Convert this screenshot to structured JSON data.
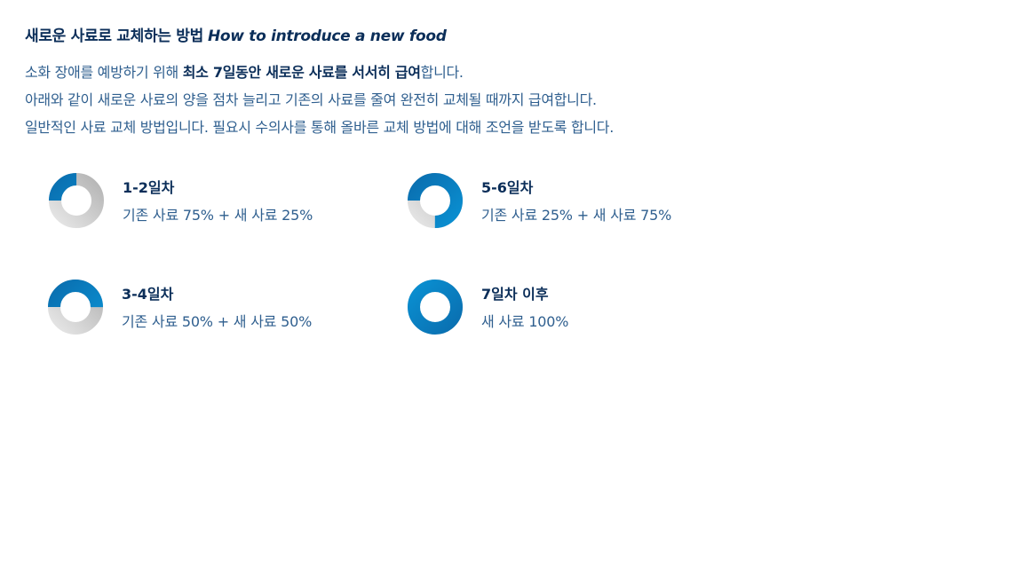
{
  "header": {
    "title_ko": "새로운 사료로 교체하는 방법",
    "title_en": "How to introduce a new food"
  },
  "intro": {
    "line1_a": "소화 장애를 예방하기 위해 ",
    "line1_bold": "최소 7일동안 새로운 사료를 서서히 급여",
    "line1_b": "합니다.",
    "line2": "아래와 같이 새로운 사료의 양을 점차 늘리고 기존의 사료를 줄여 완전히 교체될 때까지 급여합니다.",
    "line3": "일반적인 사료 교체 방법입니다. 필요시 수의사를 통해 올바른 교체 방법에 대해 조언을 받도록 합니다."
  },
  "steps": [
    {
      "title": "1-2일차",
      "desc": "기존 사료 75% + 새 사료 25%",
      "new_fraction": 0.25
    },
    {
      "title": "5-6일차",
      "desc": "기존 사료 25% + 새 사료 75%",
      "new_fraction": 0.75
    },
    {
      "title": "3-4일차",
      "desc": "기존 사료 50% + 새 사료 50%",
      "new_fraction": 0.5
    },
    {
      "title": "7일차 이후",
      "desc": "새 사료 100%",
      "new_fraction": 1.0
    }
  ],
  "colors": {
    "new_food": "#0a8fd1",
    "new_food_dark": "#0a6fb0",
    "old_food": "#b5b5b5",
    "old_food_light": "#e6e6e6"
  }
}
